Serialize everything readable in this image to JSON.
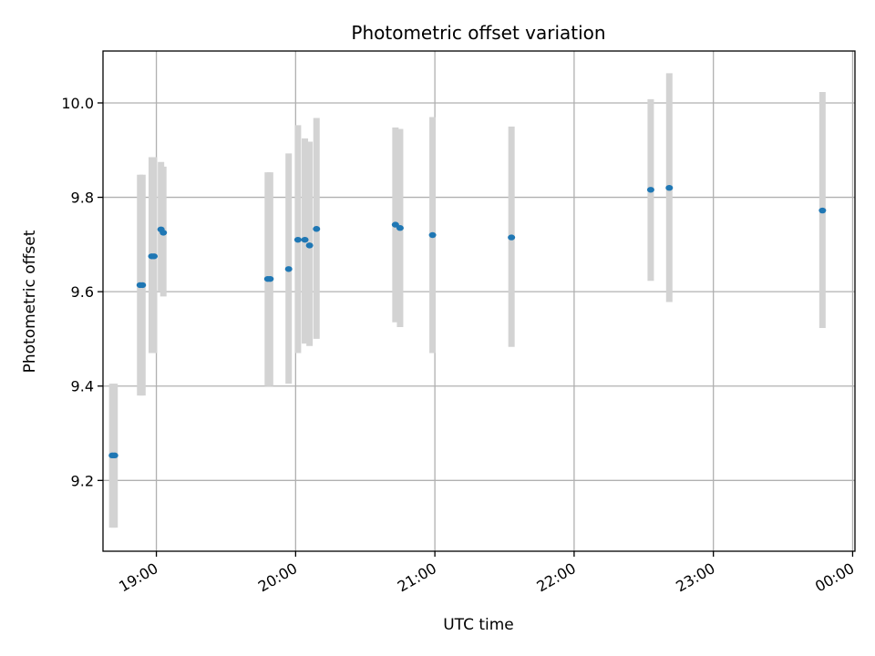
{
  "chart_data": {
    "type": "scatter",
    "title": "Photometric offset variation",
    "xlabel": "UTC time",
    "ylabel": "Photometric offset",
    "xlim": [
      "18:37",
      "00:01"
    ],
    "ylim": [
      9.05,
      10.11
    ],
    "x_ticks": [
      "19:00",
      "20:00",
      "21:00",
      "22:00",
      "23:00",
      "00:00"
    ],
    "y_ticks": [
      9.2,
      9.4,
      9.6,
      9.8,
      10.0
    ],
    "grid": true,
    "series": [
      {
        "color": "#1f77b4",
        "error_color": "#d3d3d3",
        "points": [
          {
            "x": "18:41",
            "y": 9.253,
            "ymin": 9.1,
            "ymax": 9.405
          },
          {
            "x": "18:42",
            "y": 9.253,
            "ymin": 9.1,
            "ymax": 9.405
          },
          {
            "x": "18:53",
            "y": 9.614,
            "ymin": 9.38,
            "ymax": 9.848
          },
          {
            "x": "18:54",
            "y": 9.614,
            "ymin": 9.38,
            "ymax": 9.848
          },
          {
            "x": "18:58",
            "y": 9.675,
            "ymin": 9.47,
            "ymax": 9.885
          },
          {
            "x": "18:59",
            "y": 9.675,
            "ymin": 9.47,
            "ymax": 9.885
          },
          {
            "x": "19:02",
            "y": 9.732,
            "ymin": 9.6,
            "ymax": 9.875
          },
          {
            "x": "19:03",
            "y": 9.725,
            "ymin": 9.59,
            "ymax": 9.865
          },
          {
            "x": "19:48",
            "y": 9.627,
            "ymin": 9.4,
            "ymax": 9.853
          },
          {
            "x": "19:49",
            "y": 9.627,
            "ymin": 9.4,
            "ymax": 9.853
          },
          {
            "x": "19:57",
            "y": 9.648,
            "ymin": 9.405,
            "ymax": 9.893
          },
          {
            "x": "20:01",
            "y": 9.71,
            "ymin": 9.47,
            "ymax": 9.953
          },
          {
            "x": "20:04",
            "y": 9.71,
            "ymin": 9.49,
            "ymax": 9.925
          },
          {
            "x": "20:06",
            "y": 9.698,
            "ymin": 9.485,
            "ymax": 9.918
          },
          {
            "x": "20:09",
            "y": 9.733,
            "ymin": 9.5,
            "ymax": 9.968
          },
          {
            "x": "20:43",
            "y": 9.742,
            "ymin": 9.535,
            "ymax": 9.948
          },
          {
            "x": "20:45",
            "y": 9.735,
            "ymin": 9.525,
            "ymax": 9.945
          },
          {
            "x": "20:59",
            "y": 9.72,
            "ymin": 9.47,
            "ymax": 9.97
          },
          {
            "x": "21:33",
            "y": 9.715,
            "ymin": 9.483,
            "ymax": 9.95
          },
          {
            "x": "22:33",
            "y": 9.816,
            "ymin": 9.623,
            "ymax": 10.008
          },
          {
            "x": "22:41",
            "y": 9.82,
            "ymin": 9.578,
            "ymax": 10.063
          },
          {
            "x": "23:47",
            "y": 9.772,
            "ymin": 9.523,
            "ymax": 10.023
          }
        ]
      }
    ]
  }
}
